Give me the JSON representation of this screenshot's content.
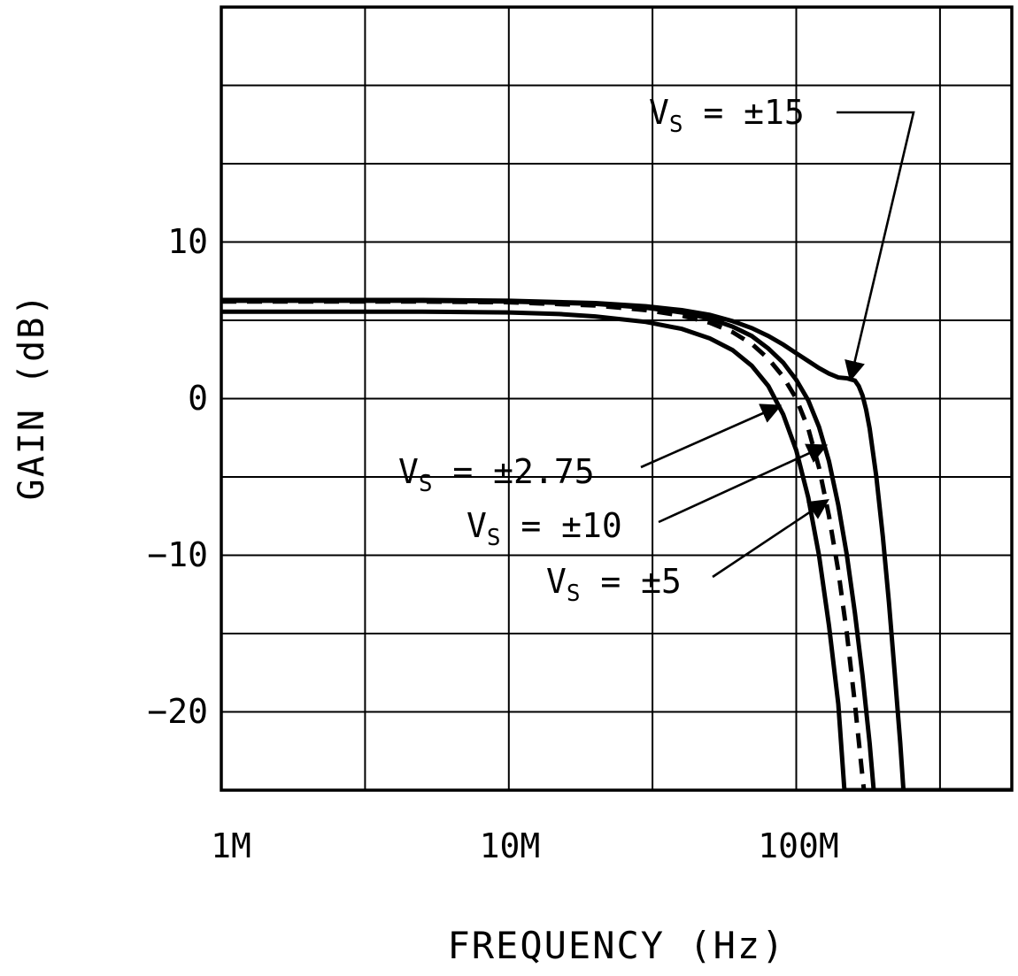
{
  "chart_data": {
    "type": "line",
    "title": "",
    "xlabel": "FREQUENCY (Hz)",
    "ylabel": "GAIN (dB)",
    "grid": "on",
    "line_color": "#000000",
    "background": "#ffffff",
    "x_axis": {
      "scale": "log",
      "unit": "Hz",
      "min_mhz": 1,
      "max_mhz": 562,
      "tick_labels": [
        "1M",
        "10M",
        "100M"
      ],
      "tick_mhz": [
        1,
        10,
        100
      ],
      "gridline_interval": "half-decade"
    },
    "y_axis": {
      "min_db": -25,
      "max_db": 25,
      "grid_step_db": 5,
      "tick_labels": [
        "10",
        "0",
        "−10",
        "−20"
      ],
      "tick_db": [
        10,
        0,
        -10,
        -20
      ]
    },
    "series": [
      {
        "name": "VS = ±2.75",
        "line_style": "solid",
        "points_mhz_db": [
          [
            1,
            5.55
          ],
          [
            2,
            5.55
          ],
          [
            5,
            5.55
          ],
          [
            10,
            5.5
          ],
          [
            15,
            5.4
          ],
          [
            20,
            5.25
          ],
          [
            30,
            4.9
          ],
          [
            40,
            4.45
          ],
          [
            50,
            3.85
          ],
          [
            60,
            3.1
          ],
          [
            70,
            2.1
          ],
          [
            80,
            0.8
          ],
          [
            90,
            -1.0
          ],
          [
            100,
            -3.3
          ],
          [
            110,
            -6.3
          ],
          [
            120,
            -10.0
          ],
          [
            130,
            -14.5
          ],
          [
            140,
            -19.5
          ],
          [
            147,
            -25
          ],
          [
            560,
            -25
          ]
        ]
      },
      {
        "name": "VS = ±5",
        "line_style": "dashed",
        "points_mhz_db": [
          [
            1,
            6.2
          ],
          [
            2,
            6.2
          ],
          [
            5,
            6.2
          ],
          [
            10,
            6.15
          ],
          [
            20,
            5.95
          ],
          [
            30,
            5.65
          ],
          [
            40,
            5.3
          ],
          [
            50,
            4.85
          ],
          [
            60,
            4.25
          ],
          [
            70,
            3.5
          ],
          [
            80,
            2.55
          ],
          [
            90,
            1.4
          ],
          [
            100,
            0.0
          ],
          [
            110,
            -1.9
          ],
          [
            120,
            -4.4
          ],
          [
            130,
            -7.5
          ],
          [
            140,
            -11.0
          ],
          [
            150,
            -15.0
          ],
          [
            160,
            -19.5
          ],
          [
            170,
            -24.2
          ],
          [
            172,
            -25
          ],
          [
            560,
            -25
          ]
        ]
      },
      {
        "name": "VS = ±10",
        "line_style": "solid",
        "points_mhz_db": [
          [
            1,
            6.25
          ],
          [
            2,
            6.25
          ],
          [
            5,
            6.25
          ],
          [
            10,
            6.2
          ],
          [
            20,
            6.05
          ],
          [
            30,
            5.8
          ],
          [
            40,
            5.5
          ],
          [
            50,
            5.1
          ],
          [
            60,
            4.6
          ],
          [
            70,
            4.0
          ],
          [
            80,
            3.2
          ],
          [
            90,
            2.3
          ],
          [
            100,
            1.2
          ],
          [
            110,
            -0.1
          ],
          [
            120,
            -1.8
          ],
          [
            130,
            -4.0
          ],
          [
            140,
            -6.8
          ],
          [
            150,
            -10.0
          ],
          [
            160,
            -13.7
          ],
          [
            170,
            -17.7
          ],
          [
            180,
            -22.0
          ],
          [
            186,
            -25
          ],
          [
            560,
            -25
          ]
        ]
      },
      {
        "name": "VS = ±15",
        "line_style": "solid",
        "points_mhz_db": [
          [
            1,
            6.3
          ],
          [
            2,
            6.3
          ],
          [
            5,
            6.3
          ],
          [
            10,
            6.25
          ],
          [
            20,
            6.1
          ],
          [
            30,
            5.9
          ],
          [
            40,
            5.65
          ],
          [
            50,
            5.35
          ],
          [
            60,
            4.95
          ],
          [
            70,
            4.5
          ],
          [
            80,
            4.0
          ],
          [
            90,
            3.45
          ],
          [
            100,
            2.9
          ],
          [
            110,
            2.4
          ],
          [
            120,
            1.95
          ],
          [
            130,
            1.6
          ],
          [
            140,
            1.35
          ],
          [
            150,
            1.3
          ],
          [
            160,
            1.15
          ],
          [
            165,
            0.8
          ],
          [
            170,
            0.2
          ],
          [
            175,
            -0.7
          ],
          [
            180,
            -1.9
          ],
          [
            190,
            -5.0
          ],
          [
            200,
            -8.8
          ],
          [
            210,
            -13.0
          ],
          [
            220,
            -17.5
          ],
          [
            230,
            -22.0
          ],
          [
            236,
            -25
          ],
          [
            560,
            -25
          ]
        ]
      }
    ],
    "annotations": [
      {
        "base": "V",
        "sub": "S",
        "rest": " = ±15"
      },
      {
        "base": "V",
        "sub": "S",
        "rest": " = ±2.75"
      },
      {
        "base": "V",
        "sub": "S",
        "rest": " = ±10"
      },
      {
        "base": "V",
        "sub": "S",
        "rest": " = ±5"
      }
    ]
  }
}
